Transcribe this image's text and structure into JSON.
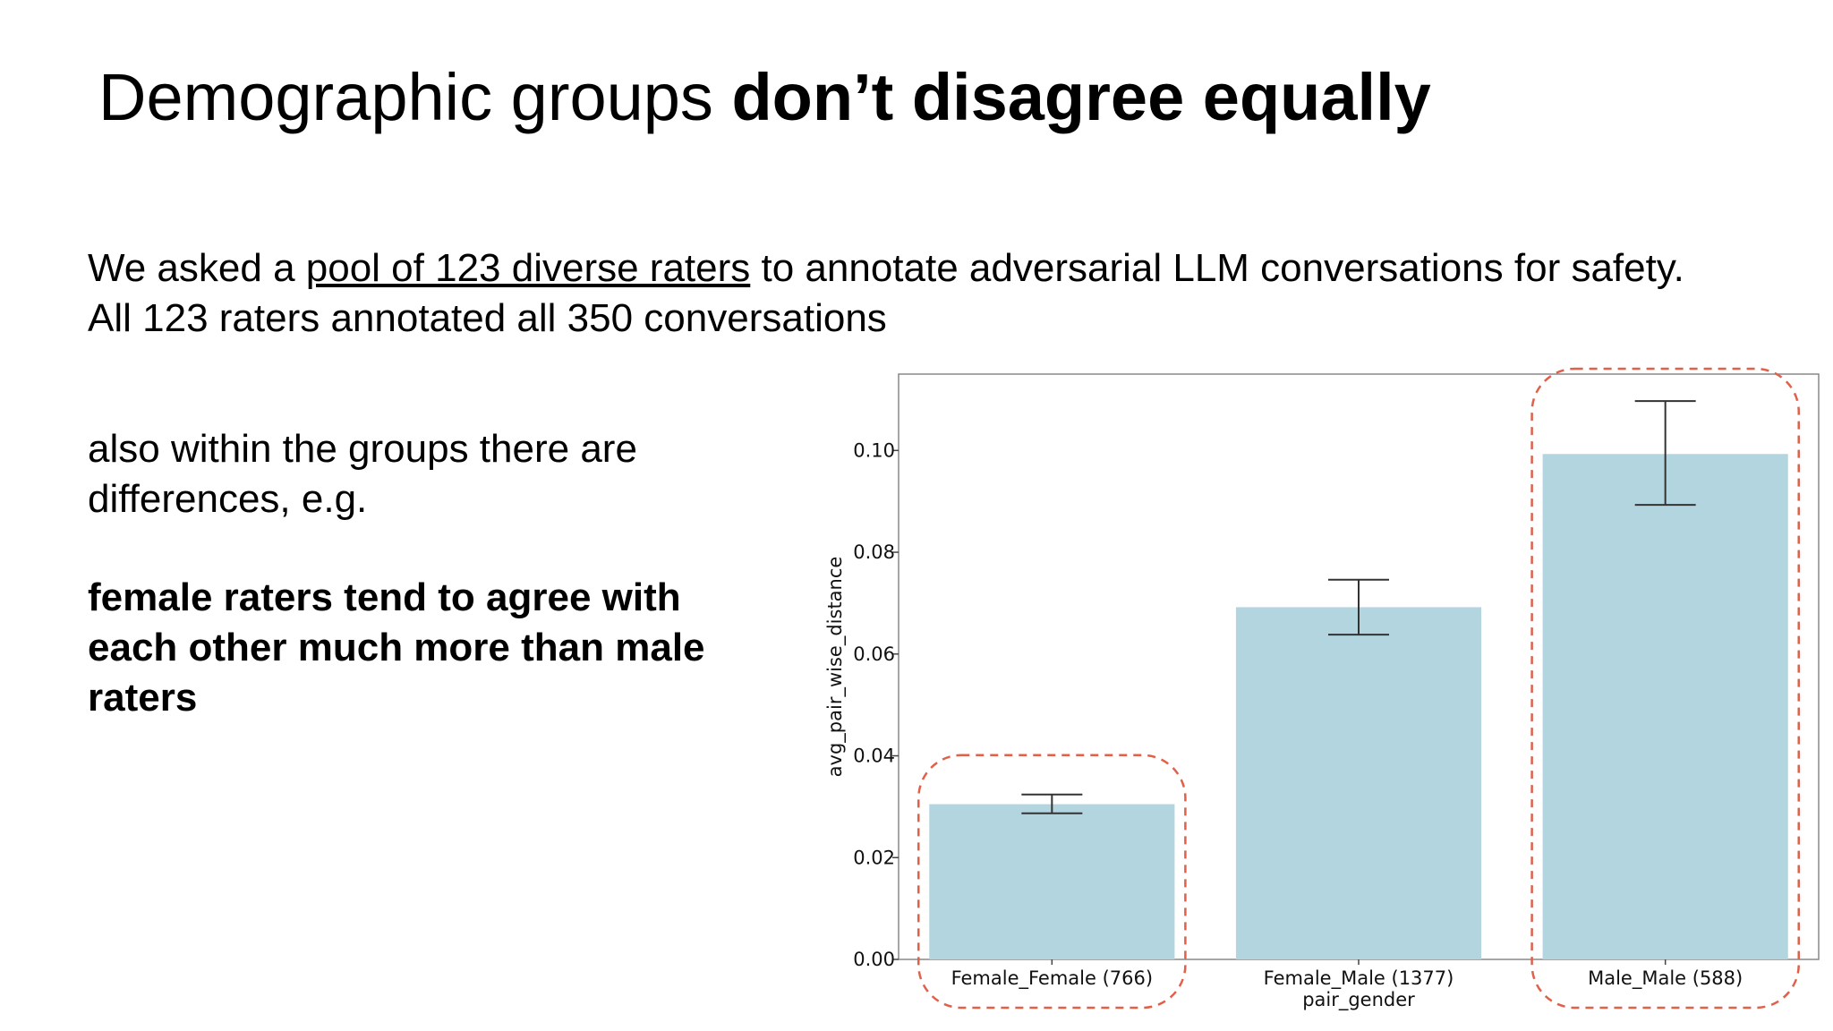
{
  "slide": {
    "title_regular": "Demographic groups ",
    "title_bold": "don’t disagree equally",
    "intro_part1": "We asked a ",
    "intro_link": "pool of 123 diverse raters",
    "intro_part2": " to annotate adversarial LLM conversations for safety.",
    "intro_line2": "All 123 raters annotated all 350 conversations",
    "note": "also within the groups there are differences, e.g.",
    "note_emphasis": "female raters tend to agree with each other much more than male raters"
  },
  "chart_data": {
    "type": "bar",
    "categories": [
      "Female_Female (766)",
      "Female_Male (1377)",
      "Male_Male (588)"
    ],
    "values": [
      0.0305,
      0.0692,
      0.0993
    ],
    "error_low": [
      0.0287,
      0.0638,
      0.0893
    ],
    "error_high": [
      0.0324,
      0.0746,
      0.1097
    ],
    "xlabel": "pair_gender",
    "ylabel": "avg_pair_wise_distance",
    "ylim": [
      0,
      0.115
    ],
    "yticks": [
      "0.00",
      "0.02",
      "0.04",
      "0.06",
      "0.08",
      "0.10"
    ],
    "ytick_values": [
      0,
      0.02,
      0.04,
      0.06,
      0.08,
      0.1
    ],
    "highlighted_categories": [
      0,
      2
    ],
    "colors": {
      "bar": "#b3d5e0",
      "error": "#333333",
      "highlight": "#e0604a",
      "frame": "#888888"
    },
    "grid": false
  }
}
